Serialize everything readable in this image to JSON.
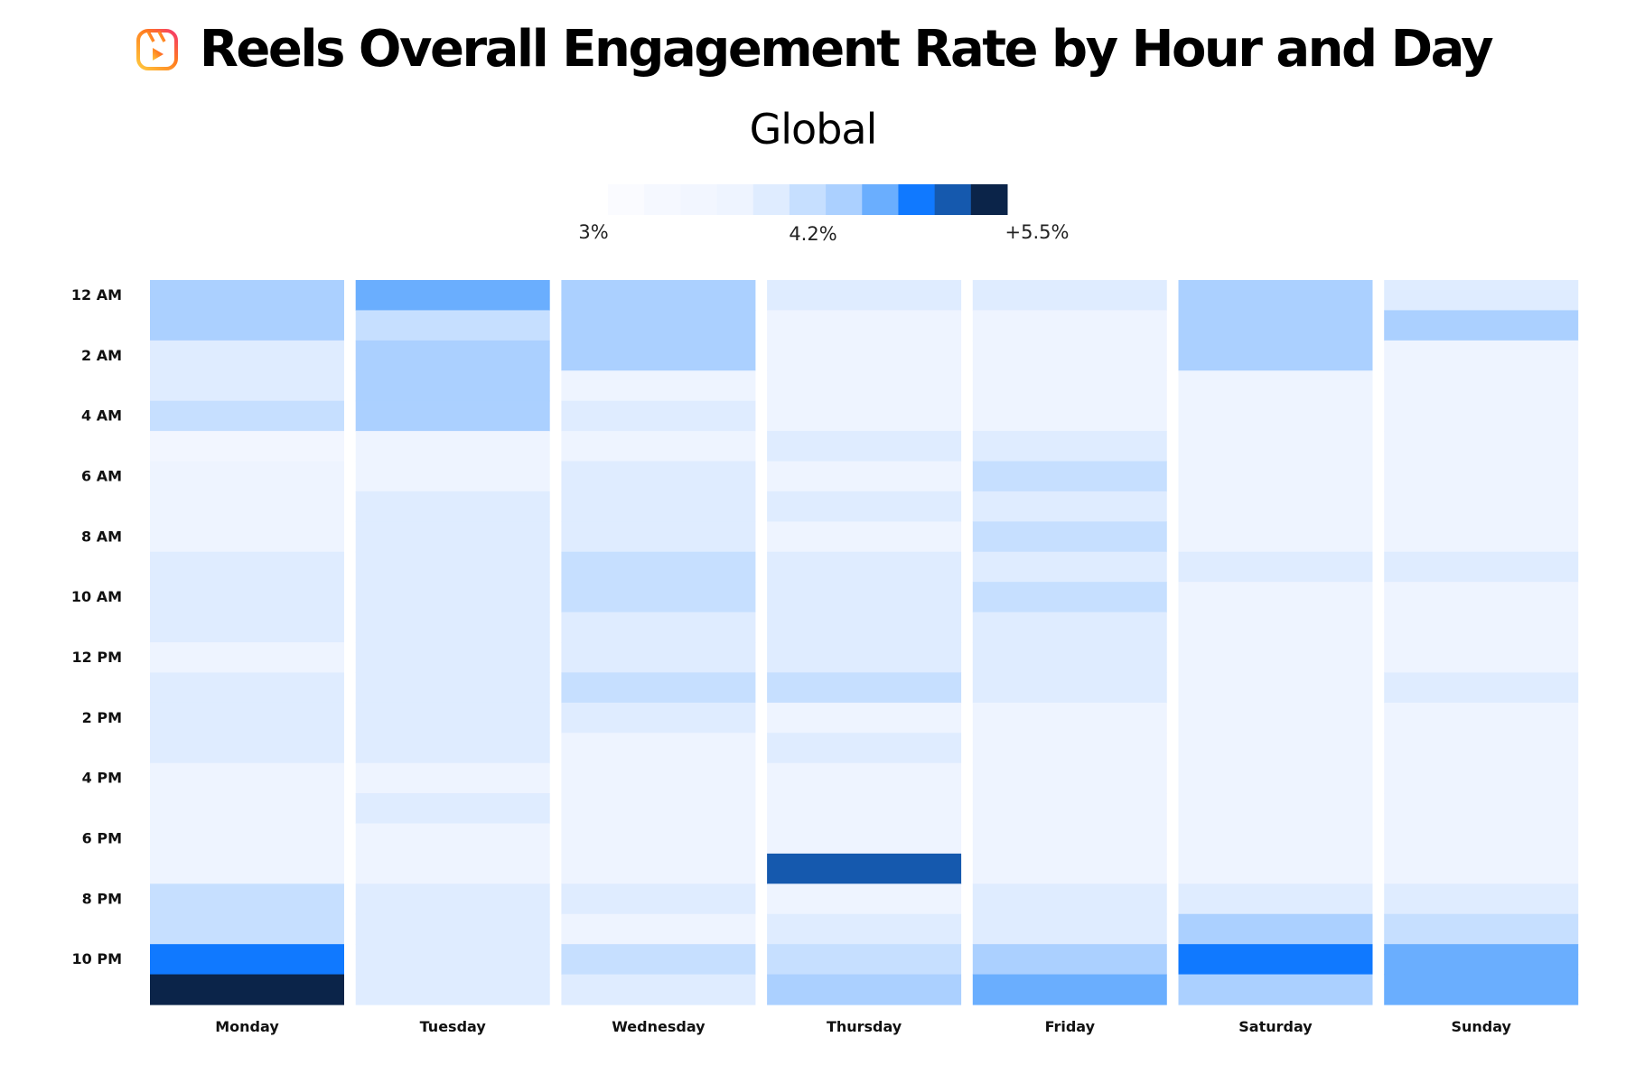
{
  "header": {
    "title": "Reels Overall Engagement Rate by Hour and Day",
    "subtitle": "Global",
    "icon": "instagram-reels-icon"
  },
  "chart_data": {
    "type": "heatmap",
    "title": "Reels Overall Engagement Rate by Hour and Day",
    "subtitle": "Global",
    "legend": {
      "position": "top",
      "min": 3.0,
      "max": 5.5,
      "tick_labels": [
        "3%",
        "4.2%",
        "+5.5%"
      ],
      "colors": [
        "#fafbff",
        "#f5f8ff",
        "#f2f6ff",
        "#eef4ff",
        "#dfecff",
        "#c6dfff",
        "#abd0ff",
        "#6aaefe",
        "#1079ff",
        "#1559ae",
        "#0b2449"
      ]
    },
    "x_categories": [
      "Monday",
      "Tuesday",
      "Wednesday",
      "Thursday",
      "Friday",
      "Saturday",
      "Sunday"
    ],
    "y_categories": [
      "12 AM",
      "1 AM",
      "2 AM",
      "3 AM",
      "4 AM",
      "5 AM",
      "6 AM",
      "7 AM",
      "8 AM",
      "9 AM",
      "10 AM",
      "11 AM",
      "12 PM",
      "1 PM",
      "2 PM",
      "3 PM",
      "4 PM",
      "5 PM",
      "6 PM",
      "7 PM",
      "8 PM",
      "9 PM",
      "10 PM",
      "11 PM"
    ],
    "y_tick_labels": [
      "12 AM",
      "2 AM",
      "4 AM",
      "6 AM",
      "8 AM",
      "10 AM",
      "12 PM",
      "2 PM",
      "4 PM",
      "6 PM",
      "8 PM",
      "10 PM"
    ],
    "unit": "%",
    "values": {
      "Monday": [
        4.5,
        4.5,
        4.0,
        4.0,
        4.25,
        3.6,
        3.8,
        3.8,
        3.8,
        4.0,
        4.0,
        4.0,
        3.8,
        4.0,
        4.0,
        4.0,
        3.8,
        3.8,
        3.8,
        3.8,
        4.25,
        4.25,
        4.9,
        5.4
      ],
      "Tuesday": [
        4.7,
        4.25,
        4.5,
        4.5,
        4.5,
        3.8,
        3.8,
        4.0,
        4.0,
        4.0,
        4.0,
        4.0,
        4.0,
        4.0,
        4.0,
        4.0,
        3.8,
        4.0,
        3.8,
        3.8,
        4.0,
        4.0,
        4.0,
        4.0
      ],
      "Wednesday": [
        4.5,
        4.5,
        4.5,
        3.8,
        4.0,
        3.8,
        4.0,
        4.0,
        4.0,
        4.25,
        4.25,
        4.0,
        4.0,
        4.25,
        4.0,
        3.8,
        3.8,
        3.8,
        3.8,
        3.8,
        4.0,
        3.8,
        4.25,
        4.0
      ],
      "Thursday": [
        4.0,
        3.8,
        3.8,
        3.8,
        3.8,
        4.0,
        3.8,
        4.0,
        3.8,
        4.0,
        4.0,
        4.0,
        4.0,
        4.25,
        3.8,
        4.0,
        3.8,
        3.8,
        3.8,
        5.2,
        3.8,
        4.0,
        4.25,
        4.5
      ],
      "Friday": [
        4.0,
        3.8,
        3.8,
        3.8,
        3.8,
        4.0,
        4.25,
        4.0,
        4.25,
        4.0,
        4.25,
        4.0,
        4.0,
        4.0,
        3.8,
        3.8,
        3.8,
        3.8,
        3.8,
        3.8,
        4.0,
        4.0,
        4.5,
        4.7
      ],
      "Saturday": [
        4.5,
        4.5,
        4.5,
        3.8,
        3.8,
        3.8,
        3.8,
        3.8,
        3.8,
        4.0,
        3.8,
        3.8,
        3.8,
        3.8,
        3.8,
        3.8,
        3.8,
        3.8,
        3.8,
        3.8,
        4.0,
        4.5,
        4.9,
        4.5
      ],
      "Sunday": [
        4.0,
        4.5,
        3.8,
        3.8,
        3.8,
        3.8,
        3.8,
        3.8,
        3.8,
        4.0,
        3.8,
        3.8,
        3.8,
        4.0,
        3.8,
        3.8,
        3.8,
        3.8,
        3.8,
        3.8,
        4.0,
        4.25,
        4.7,
        4.7
      ]
    }
  }
}
